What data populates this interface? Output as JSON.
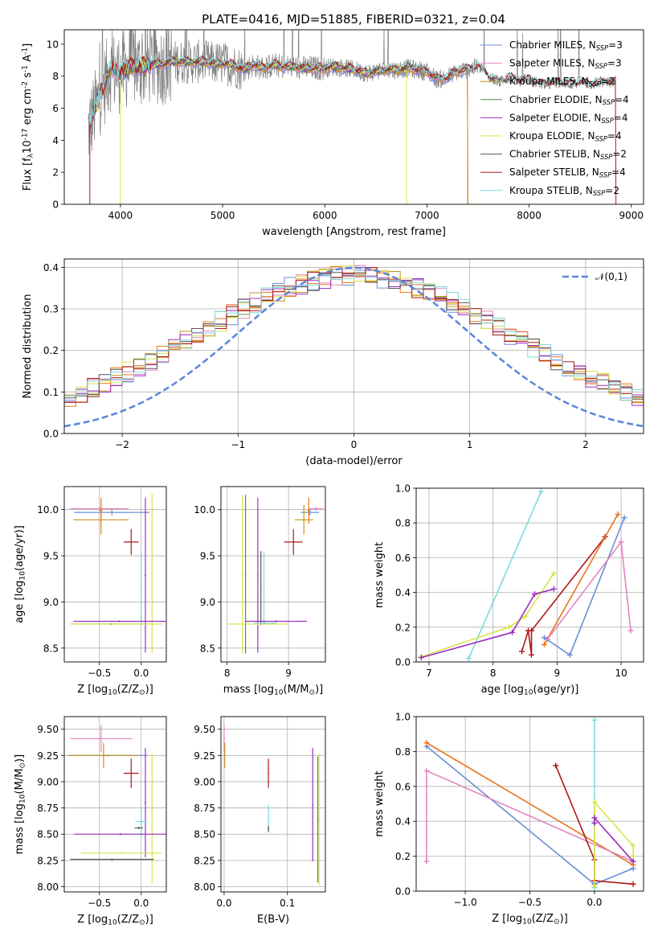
{
  "figure": {
    "title": "PLATE=0416, MJD=51885, FIBERID=0321, z=0.04"
  },
  "colors": {
    "Chabrier MILES": "#6b8fd6",
    "Salpeter MILES": "#e384c1",
    "Kroupa MILES": "#c8911a",
    "Chabrier ELODIE": "#4f8a4f",
    "Salpeter ELODIE": "#9b2fbf",
    "Kroupa ELODIE": "#d8e34a",
    "Chabrier STELIB": "#555555",
    "Salpeter STELIB": "#b01818",
    "Kroupa STELIB": "#7fd8dc",
    "orange": "#e8761d",
    "data": "#808080",
    "normal": "#5b86d8",
    "grid": "#b0b0b0"
  },
  "chart_data": [
    {
      "id": "spectrum",
      "type": "line",
      "title": "PLATE=0416, MJD=51885, FIBERID=0321, z=0.04",
      "xlabel": "wavelength [Angstrom, rest frame]",
      "ylabel": "Flux [f$_\\lambda$10$^{-17}$ erg cm$^{-2}$ s$^{-1}$ A$^{-1}$]",
      "xlim": [
        3450,
        9120
      ],
      "ylim": [
        0,
        10.9
      ],
      "xticks": [
        4000,
        5000,
        6000,
        7000,
        8000,
        9000
      ],
      "yticks": [
        0,
        2,
        4,
        6,
        8,
        10
      ],
      "grid": false,
      "legend_position": "top-right",
      "legend": [
        "Chabrier MILES, N_SSP=3",
        "Salpeter MILES, N_SSP=3",
        "Kroupa MILES, N_SSP=2",
        "Chabrier ELODIE, N_SSP=4",
        "Salpeter ELODIE, N_SSP=4",
        "Kroupa ELODIE, N_SSP=4",
        "Chabrier STELIB, N_SSP=2",
        "Salpeter STELIB, N_SSP=4",
        "Kroupa STELIB, N_SSP=2"
      ],
      "continuum_x": [
        3680,
        3800,
        3900,
        4000,
        4100,
        4200,
        4300,
        4400,
        4500,
        4600,
        4700,
        4800,
        4900,
        5000,
        5100,
        5200,
        5300,
        5400,
        5500,
        5600,
        5700,
        5800,
        5900,
        6000,
        6100,
        6200,
        6300,
        6400,
        6500,
        6600,
        6700,
        6800,
        6900,
        7000,
        7100,
        7200,
        7300,
        7400,
        7500,
        7600,
        7700,
        7800,
        7900,
        8000,
        8100,
        8200,
        8300,
        8400,
        8500,
        8600,
        8700,
        8800,
        8850
      ],
      "continuum_y": [
        4.6,
        6.8,
        8.3,
        8.2,
        8.7,
        8.5,
        8.8,
        8.7,
        8.9,
        8.9,
        8.9,
        8.9,
        8.8,
        8.8,
        8.7,
        8.4,
        8.7,
        8.5,
        8.7,
        8.6,
        8.6,
        8.5,
        8.5,
        8.5,
        8.6,
        8.5,
        8.4,
        8.2,
        8.3,
        8.4,
        8.4,
        8.5,
        8.4,
        8.3,
        7.8,
        7.9,
        8.3,
        8.4,
        8.6,
        8.0,
        7.6,
        7.9,
        7.7,
        7.8,
        7.5,
        7.5,
        7.6,
        7.5,
        7.6,
        7.5,
        7.6,
        7.6,
        7.6
      ]
    },
    {
      "id": "residuals",
      "type": "line",
      "xlabel": "(data-model)/error",
      "ylabel": "Normed distribution",
      "xlim": [
        -2.5,
        2.5
      ],
      "ylim": [
        0,
        0.42
      ],
      "xticks": [
        -2,
        -1,
        0,
        1,
        2
      ],
      "yticks": [
        0.0,
        0.1,
        0.2,
        0.3,
        0.4
      ],
      "grid": true,
      "legend_position": "top-right",
      "legend": [
        "$\\mathcal{N}(0,1)$"
      ]
    },
    {
      "id": "age_vs_Z",
      "type": "scatter",
      "xlabel": "Z [log$_{10}$($Z/Z_\\odot$)]",
      "ylabel": "age  [log$_{10}$($age/yr$)]",
      "xlim": [
        -0.92,
        0.3
      ],
      "ylim": [
        8.35,
        10.25
      ],
      "xticks": [
        -0.5,
        0.0
      ],
      "yticks": [
        8.5,
        9.0,
        9.5,
        10.0
      ],
      "grid": true,
      "points": [
        {
          "model": "Chabrier MILES",
          "x": -0.35,
          "y": 9.97,
          "xerr": 0.45,
          "yerr": 0.03
        },
        {
          "model": "Salpeter MILES",
          "x": -0.5,
          "y": 10.01,
          "xerr": 0.35,
          "yerr": 0.02
        },
        {
          "model": "Kroupa MILES",
          "x": -0.48,
          "y": 9.89,
          "xerr": 0.33,
          "yerr": 0.16
        },
        {
          "model": "orange",
          "x": -0.48,
          "y": 9.99,
          "xerr": 0.02,
          "yerr": 0.14
        },
        {
          "model": "Salpeter STELIB",
          "x": -0.12,
          "y": 9.65,
          "xerr": 0.09,
          "yerr": 0.14
        },
        {
          "model": "Salpeter ELODIE",
          "x": 0.05,
          "y": 9.29,
          "xerr": 0.01,
          "yerr": 0.84
        },
        {
          "model": "Kroupa ELODIE",
          "x": 0.13,
          "y": 9.31,
          "xerr": 0.01,
          "yerr": 0.86
        },
        {
          "model": "Kroupa STELIB",
          "x": 0.0,
          "y": 9.15,
          "xerr": 0.01,
          "yerr": 0.4
        },
        {
          "model": "Salpeter ELODIE",
          "x": -0.26,
          "y": 8.79,
          "xerr": 0.55,
          "yerr": 0.01
        },
        {
          "model": "Chabrier STELIB",
          "x": -0.36,
          "y": 8.76,
          "xerr": 0.48,
          "yerr": 0.01
        },
        {
          "model": "Kroupa ELODIE",
          "x": -0.3,
          "y": 8.76,
          "xerr": 0.55,
          "yerr": 0.01
        }
      ]
    },
    {
      "id": "age_vs_mass",
      "type": "scatter",
      "xlabel": "mass [log$_{10}$($M/M_\\odot$)]",
      "xlim": [
        7.9,
        9.6
      ],
      "ylim": [
        8.35,
        10.25
      ],
      "xticks": [
        8,
        9
      ],
      "yticks": [
        8.5,
        9.0,
        9.5,
        10.0
      ],
      "grid": true,
      "points": [
        {
          "model": "Chabrier MILES",
          "x": 9.35,
          "y": 9.97,
          "xerr": 0.15,
          "yerr": 0.03
        },
        {
          "model": "Salpeter MILES",
          "x": 9.45,
          "y": 10.01,
          "xerr": 0.12,
          "yerr": 0.02
        },
        {
          "model": "Kroupa MILES",
          "x": 9.25,
          "y": 9.89,
          "xerr": 0.15,
          "yerr": 0.16
        },
        {
          "model": "orange",
          "x": 9.33,
          "y": 9.99,
          "xerr": 0.02,
          "yerr": 0.14
        },
        {
          "model": "Salpeter STELIB",
          "x": 9.08,
          "y": 9.65,
          "xerr": 0.15,
          "yerr": 0.14
        },
        {
          "model": "Salpeter ELODIE",
          "x": 8.5,
          "y": 9.29,
          "xerr": 0.01,
          "yerr": 0.84
        },
        {
          "model": "Kroupa ELODIE",
          "x": 8.25,
          "y": 9.3,
          "xerr": 0.01,
          "yerr": 0.86
        },
        {
          "model": "Chabrier ELODIE",
          "x": 8.3,
          "y": 9.3,
          "xerr": 0.01,
          "yerr": 0.86
        },
        {
          "model": "Kroupa STELIB",
          "x": 8.6,
          "y": 9.15,
          "xerr": 0.01,
          "yerr": 0.4
        },
        {
          "model": "Chabrier STELIB",
          "x": 8.55,
          "y": 9.15,
          "xerr": 0.01,
          "yerr": 0.4
        },
        {
          "model": "Salpeter ELODIE",
          "x": 8.8,
          "y": 8.79,
          "xerr": 0.5,
          "yerr": 0.01
        },
        {
          "model": "Kroupa ELODIE",
          "x": 8.5,
          "y": 8.76,
          "xerr": 0.5,
          "yerr": 0.01
        },
        {
          "model": "Kroupa STELIB",
          "x": 8.62,
          "y": 8.77,
          "xerr": 0.18,
          "yerr": 0.01
        }
      ]
    },
    {
      "id": "weight_vs_age",
      "type": "line",
      "xlabel": "age  [log$_{10}$($age/yr$)]",
      "ylabel": "mass weight",
      "xlim": [
        6.8,
        10.35
      ],
      "ylim": [
        0,
        1.0
      ],
      "xticks": [
        7,
        8,
        9,
        10
      ],
      "yticks": [
        0.0,
        0.2,
        0.4,
        0.6,
        0.8,
        1.0
      ],
      "grid": true,
      "series": [
        {
          "model": "Kroupa STELIB",
          "x": [
            7.62,
            8.75
          ],
          "y": [
            0.02,
            0.98
          ]
        },
        {
          "model": "Kroupa ELODIE",
          "x": [
            6.88,
            8.25,
            8.5,
            8.95
          ],
          "y": [
            0.03,
            0.2,
            0.26,
            0.51
          ]
        },
        {
          "model": "Salpeter ELODIE",
          "x": [
            6.88,
            8.3,
            8.65,
            8.95
          ],
          "y": [
            0.025,
            0.17,
            0.39,
            0.42
          ]
        },
        {
          "model": "Salpeter STELIB",
          "x": [
            8.45,
            8.55,
            8.6,
            8.6,
            9.75
          ],
          "y": [
            0.06,
            0.18,
            0.04,
            0.18,
            0.72
          ]
        },
        {
          "model": "Chabrier MILES",
          "x": [
            8.8,
            9.2,
            10.05
          ],
          "y": [
            0.14,
            0.04,
            0.83
          ]
        },
        {
          "model": "orange",
          "x": [
            8.8,
            9.95
          ],
          "y": [
            0.1,
            0.85
          ]
        },
        {
          "model": "Salpeter MILES",
          "x": [
            8.85,
            10.0,
            10.15
          ],
          "y": [
            0.13,
            0.69,
            0.18
          ]
        }
      ]
    },
    {
      "id": "mass_vs_Z",
      "type": "scatter",
      "xlabel": "Z [log$_{10}$($Z/Z_\\odot$)]",
      "ylabel": "mass [log$_{10}$($M/M_\\odot$)]",
      "xlim": [
        -0.92,
        0.3
      ],
      "ylim": [
        7.95,
        9.62
      ],
      "xticks": [
        -0.5,
        0.0
      ],
      "yticks": [
        8.0,
        8.25,
        8.5,
        8.75,
        9.0,
        9.25,
        9.5
      ],
      "grid": true,
      "points": [
        {
          "model": "Salpeter MILES",
          "x": -0.48,
          "y": 9.41,
          "xerr": 0.37,
          "yerr": 0.13
        },
        {
          "model": "Chabrier MILES",
          "x": -0.4,
          "y": 9.25,
          "xerr": 0.48,
          "yerr": 0.01
        },
        {
          "model": "Kroupa MILES",
          "x": -0.45,
          "y": 9.25,
          "xerr": 0.42,
          "yerr": 0.12
        },
        {
          "model": "Salpeter STELIB",
          "x": -0.12,
          "y": 9.08,
          "xerr": 0.09,
          "yerr": 0.14
        },
        {
          "model": "Salpeter ELODIE",
          "x": 0.05,
          "y": 8.8,
          "xerr": 0.01,
          "yerr": 0.52
        },
        {
          "model": "Kroupa ELODIE",
          "x": 0.13,
          "y": 8.65,
          "xerr": 0.01,
          "yerr": 0.62
        },
        {
          "model": "Kroupa STELIB",
          "x": 0.0,
          "y": 8.62,
          "xerr": 0.07,
          "yerr": 0.15
        },
        {
          "model": "Chabrier STELIB",
          "x": -0.03,
          "y": 8.56,
          "xerr": 0.05,
          "yerr": 0.01
        },
        {
          "model": "Salpeter ELODIE",
          "x": -0.25,
          "y": 8.5,
          "xerr": 0.55,
          "yerr": 0.01
        },
        {
          "model": "Kroupa ELODIE",
          "x": -0.24,
          "y": 8.32,
          "xerr": 0.48,
          "yerr": 0.01
        },
        {
          "model": "Chabrier STELIB",
          "x": -0.35,
          "y": 8.26,
          "xerr": 0.5,
          "yerr": 0.01
        }
      ]
    },
    {
      "id": "mass_vs_ebv",
      "type": "scatter",
      "xlabel": "E(B-V)",
      "xlim": [
        -0.005,
        0.16
      ],
      "ylim": [
        7.95,
        9.62
      ],
      "xticks": [
        0.0,
        0.1
      ],
      "yticks": [
        8.0,
        8.25,
        8.5,
        8.75,
        9.0,
        9.25,
        9.5
      ],
      "grid": true,
      "points": [
        {
          "model": "Salpeter MILES",
          "x": 0.0,
          "y": 9.41,
          "xerr": 0.001,
          "yerr": 0.13
        },
        {
          "model": "Kroupa MILES",
          "x": 0.001,
          "y": 9.25,
          "xerr": 0.001,
          "yerr": 0.12
        },
        {
          "model": "Salpeter STELIB",
          "x": 0.07,
          "y": 9.08,
          "xerr": 0.001,
          "yerr": 0.14
        },
        {
          "model": "Kroupa STELIB",
          "x": 0.07,
          "y": 8.65,
          "xerr": 0.001,
          "yerr": 0.13
        },
        {
          "model": "Chabrier STELIB",
          "x": 0.07,
          "y": 8.55,
          "xerr": 0.001,
          "yerr": 0.03
        },
        {
          "model": "Salpeter ELODIE",
          "x": 0.14,
          "y": 8.78,
          "xerr": 0.001,
          "yerr": 0.54
        },
        {
          "model": "Kroupa ELODIE",
          "x": 0.15,
          "y": 8.64,
          "xerr": 0.001,
          "yerr": 0.63
        },
        {
          "model": "Chabrier ELODIE",
          "x": 0.148,
          "y": 8.64,
          "xerr": 0.001,
          "yerr": 0.6
        }
      ]
    },
    {
      "id": "weight_vs_Z",
      "type": "line",
      "xlabel": "Z [log$_{10}$($Z/Z_\\odot$)]",
      "ylabel": "mass weight",
      "xlim": [
        -1.38,
        0.38
      ],
      "ylim": [
        0,
        1.0
      ],
      "xticks": [
        -1.0,
        -0.5,
        0.0
      ],
      "yticks": [
        0.0,
        0.2,
        0.4,
        0.6,
        0.8,
        1.0
      ],
      "grid": true,
      "series": [
        {
          "model": "Kroupa STELIB",
          "x": [
            0.0,
            0.0
          ],
          "y": [
            0.02,
            0.98
          ]
        },
        {
          "model": "Chabrier MILES",
          "x": [
            -1.3,
            0.0,
            0.3
          ],
          "y": [
            0.83,
            0.04,
            0.13
          ]
        },
        {
          "model": "orange",
          "x": [
            -1.3,
            0.3
          ],
          "y": [
            0.85,
            0.15
          ]
        },
        {
          "model": "Salpeter MILES",
          "x": [
            -1.3,
            -1.3,
            0.3
          ],
          "y": [
            0.17,
            0.69,
            0.17
          ]
        },
        {
          "model": "Salpeter STELIB",
          "x": [
            -0.3,
            0.0,
            0.0,
            0.3
          ],
          "y": [
            0.72,
            0.18,
            0.06,
            0.04
          ]
        },
        {
          "model": "Kroupa ELODIE",
          "x": [
            0.0,
            0.0,
            0.3,
            0.3
          ],
          "y": [
            0.03,
            0.51,
            0.26,
            0.2
          ]
        },
        {
          "model": "Salpeter ELODIE",
          "x": [
            0.0,
            0.0,
            0.3
          ],
          "y": [
            0.39,
            0.42,
            0.17
          ]
        }
      ]
    }
  ]
}
